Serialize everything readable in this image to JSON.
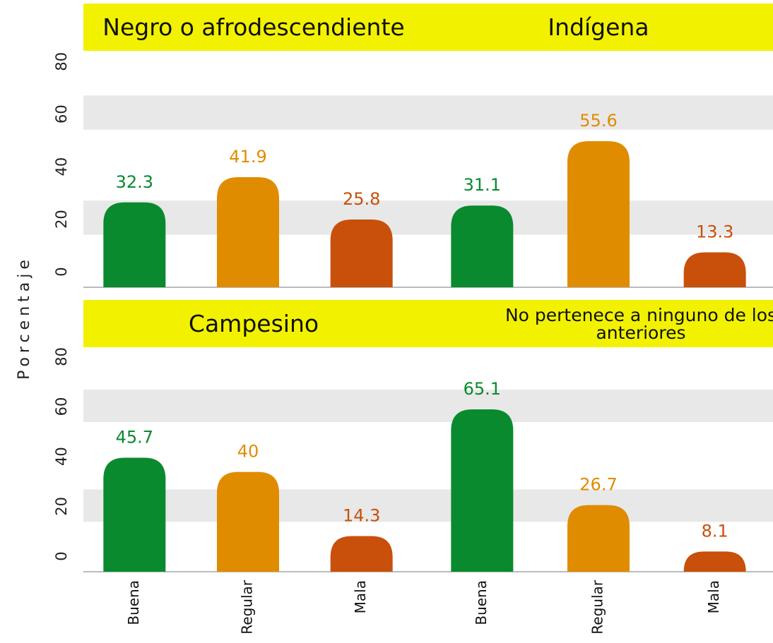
{
  "y_label": "Porcentaje",
  "chart_data": [
    {
      "type": "bar",
      "title": "Negro o afrodescendiente",
      "categories": [
        null,
        null,
        null
      ],
      "values": [
        32.3,
        41.9,
        25.8
      ],
      "colors": [
        "#0a8a2e",
        "#e08c00",
        "#c8500a"
      ],
      "ylim": [
        0,
        90
      ],
      "yticks": [
        0,
        20,
        40,
        60,
        80
      ],
      "grid": true
    },
    {
      "type": "bar",
      "title": "Indígena",
      "categories": [
        null,
        null,
        null
      ],
      "values": [
        31.1,
        55.6,
        13.3
      ],
      "colors": [
        "#0a8a2e",
        "#e08c00",
        "#c8500a"
      ],
      "ylim": [
        0,
        90
      ],
      "yticks": [
        0,
        20,
        40,
        60,
        80
      ],
      "grid": true
    },
    {
      "type": "bar",
      "title": "Campesino",
      "categories": [
        "Buena",
        "Regular",
        "Mala"
      ],
      "values": [
        45.7,
        40,
        14.3
      ],
      "colors": [
        "#0a8a2e",
        "#e08c00",
        "#c8500a"
      ],
      "ylim": [
        0,
        90
      ],
      "yticks": [
        0,
        20,
        40,
        60,
        80
      ],
      "grid": true
    },
    {
      "type": "bar",
      "title": "No pertenece a ninguno de los anteriores",
      "categories": [
        "Buena",
        "Regular",
        "Mala"
      ],
      "values": [
        65.1,
        26.7,
        8.1
      ],
      "colors": [
        "#0a8a2e",
        "#e08c00",
        "#c8500a"
      ],
      "ylim": [
        0,
        90
      ],
      "yticks": [
        0,
        20,
        40,
        60,
        80
      ],
      "grid": true
    }
  ]
}
